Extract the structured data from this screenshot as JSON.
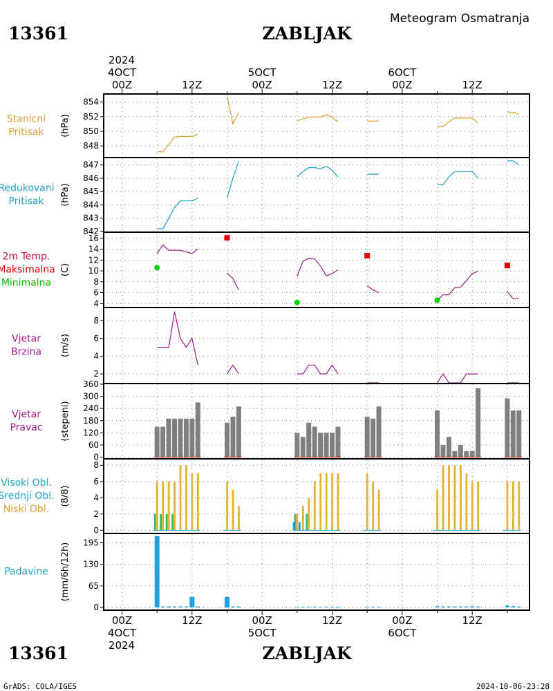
{
  "header": {
    "station_id": "13361",
    "station_name": "ZABLJAK",
    "meteogram_title": "Meteogram Osmatranja"
  },
  "footer": {
    "credit": "GrADS: COLA/IGES",
    "timestamp": "2024-10-06-23:28"
  },
  "time_axis": {
    "year": "2024",
    "ticks": [
      {
        "h": 0,
        "top_label": "00Z",
        "top_date": "4OCT",
        "bottom_label": "00Z",
        "bottom_date": "4OCT"
      },
      {
        "h": 12,
        "top_label": "12Z",
        "top_date": "",
        "bottom_label": "12Z",
        "bottom_date": ""
      },
      {
        "h": 24,
        "top_label": "00Z",
        "top_date": "5OCT",
        "bottom_label": "00Z",
        "bottom_date": "5OCT"
      },
      {
        "h": 36,
        "top_label": "12Z",
        "top_date": "",
        "bottom_label": "12Z",
        "bottom_date": ""
      },
      {
        "h": 48,
        "top_label": "00Z",
        "top_date": "6OCT",
        "bottom_label": "00Z",
        "bottom_date": "6OCT"
      },
      {
        "h": 60,
        "top_label": "12Z",
        "top_date": "",
        "bottom_label": "12Z",
        "bottom_date": ""
      }
    ]
  },
  "chart_data": [
    {
      "id": "pressure",
      "type": "line",
      "labels": [
        "Stanicni",
        "Pritisak"
      ],
      "label_color": "#e0a030",
      "ylabel": "(hPa)",
      "ylim": [
        846.5,
        855
      ],
      "yticks": [
        848,
        850,
        852,
        854
      ],
      "color": "#e0a030",
      "series": [
        {
          "x": [
            6,
            7,
            8,
            9,
            10,
            11,
            12,
            13
          ],
          "y": [
            847.2,
            847.2,
            848.2,
            849.2,
            849.3,
            849.3,
            849.3,
            849.6
          ]
        },
        {
          "x": [
            18,
            19,
            20
          ],
          "y": [
            854.8,
            851,
            852.6
          ]
        },
        {
          "x": [
            30,
            31,
            32,
            33,
            34,
            35,
            36,
            37
          ],
          "y": [
            851.4,
            851.7,
            851.9,
            852,
            851.9,
            852.3,
            851.9,
            851.3
          ]
        },
        {
          "x": [
            42,
            43,
            44
          ],
          "y": [
            851.4,
            851.4,
            851.4
          ]
        },
        {
          "x": [
            54,
            55,
            56,
            57,
            58,
            59,
            60,
            61
          ],
          "y": [
            850.6,
            850.6,
            851.3,
            851.8,
            851.8,
            851.8,
            851.8,
            851.1
          ]
        },
        {
          "x": [
            66,
            67,
            68
          ],
          "y": [
            852.6,
            852.6,
            852.3
          ]
        }
      ]
    },
    {
      "id": "msl",
      "type": "line",
      "labels": [
        "Redukovani",
        "Pritisak"
      ],
      "label_color": "#20a0c8",
      "ylabel": "(hPa)",
      "ylim": [
        842,
        847.5
      ],
      "yticks": [
        842,
        843,
        844,
        845,
        846,
        847
      ],
      "color": "#20a0c8",
      "series": [
        {
          "x": [
            6,
            7,
            8,
            9,
            10,
            11,
            12,
            13
          ],
          "y": [
            842.2,
            842.2,
            843,
            843.8,
            844.3,
            844.3,
            844.3,
            844.5
          ]
        },
        {
          "x": [
            18,
            19,
            20
          ],
          "y": [
            844.5,
            846,
            847.3
          ]
        },
        {
          "x": [
            30,
            31,
            32,
            33,
            34,
            35,
            36,
            37
          ],
          "y": [
            846.1,
            846.5,
            846.8,
            846.8,
            846.7,
            846.9,
            846.6,
            846.1
          ]
        },
        {
          "x": [
            42,
            43,
            44
          ],
          "y": [
            846.3,
            846.3,
            846.3
          ]
        },
        {
          "x": [
            54,
            55,
            56,
            57,
            58,
            59,
            60,
            61
          ],
          "y": [
            845.5,
            845.5,
            846.1,
            846.5,
            846.5,
            846.5,
            846.5,
            846
          ]
        },
        {
          "x": [
            66,
            67,
            68
          ],
          "y": [
            847.3,
            847.3,
            847
          ]
        }
      ]
    },
    {
      "id": "temperature",
      "type": "line",
      "labels": [
        "2m Temp.",
        "Maksimalna",
        "Minimalna"
      ],
      "label_colors": [
        "#d01050",
        "#e00000",
        "#00c000"
      ],
      "ylabel": "(C)",
      "ylim": [
        3.4,
        17
      ],
      "yticks": [
        4,
        6,
        8,
        10,
        12,
        14,
        16
      ],
      "color": "#a01880",
      "series": [
        {
          "x": [
            6,
            7,
            8,
            9,
            10,
            11,
            12,
            13
          ],
          "y": [
            13.2,
            14.8,
            13.8,
            13.8,
            13.8,
            13.5,
            13.2,
            14.1
          ]
        },
        {
          "x": [
            18,
            19,
            20
          ],
          "y": [
            9.6,
            8.6,
            6.5
          ]
        },
        {
          "x": [
            30,
            31,
            32,
            33,
            34,
            35,
            36,
            37
          ],
          "y": [
            9,
            11.8,
            12.3,
            12.2,
            10.9,
            9.1,
            9.5,
            10.2
          ]
        },
        {
          "x": [
            42,
            43,
            44
          ],
          "y": [
            7.3,
            6.5,
            6
          ]
        },
        {
          "x": [
            54,
            55,
            56,
            57,
            58,
            59,
            60,
            61
          ],
          "y": [
            4.6,
            5.6,
            5.6,
            6.9,
            7,
            8.2,
            9.5,
            10
          ]
        },
        {
          "x": [
            66,
            67,
            68
          ],
          "y": [
            6.2,
            4.9,
            4.9
          ]
        }
      ],
      "max": [
        {
          "x": 18,
          "y": 16.1
        },
        {
          "x": 42,
          "y": 12.8
        },
        {
          "x": 66,
          "y": 11
        }
      ],
      "min": [
        {
          "x": 6,
          "y": 10.6
        },
        {
          "x": 30,
          "y": 4.2
        },
        {
          "x": 54,
          "y": 4.6
        }
      ],
      "max_color": "#e00000",
      "min_color": "#00d000"
    },
    {
      "id": "wind_speed",
      "type": "line",
      "labels": [
        "Vjetar",
        "Brzina"
      ],
      "label_color": "#a01890",
      "ylabel": "(m/s)",
      "ylim": [
        1,
        9.4
      ],
      "yticks": [
        2,
        4,
        6,
        8
      ],
      "color": "#a01890",
      "series": [
        {
          "x": [
            6,
            7,
            8,
            9,
            10,
            11,
            12,
            13
          ],
          "y": [
            5,
            5,
            5,
            9,
            6,
            5,
            6,
            3
          ]
        },
        {
          "x": [
            18,
            19,
            20
          ],
          "y": [
            2,
            3,
            2
          ]
        },
        {
          "x": [
            30,
            31,
            32,
            33,
            34,
            35,
            36,
            37
          ],
          "y": [
            2,
            2,
            3,
            3,
            2,
            2,
            3,
            2
          ]
        },
        {
          "x": [
            42,
            43,
            44
          ],
          "y": [
            1,
            1,
            1
          ]
        },
        {
          "x": [
            54,
            55,
            56,
            57,
            58,
            59,
            60,
            61
          ],
          "y": [
            1,
            2,
            1,
            1,
            1,
            2,
            2,
            2
          ]
        },
        {
          "x": [
            66,
            67,
            68
          ],
          "y": [
            1,
            1,
            1
          ]
        }
      ]
    },
    {
      "id": "wind_dir",
      "type": "bar",
      "labels": [
        "Vjetar",
        "Pravac"
      ],
      "label_color": "#a01890",
      "ylabel": "(stepeni)",
      "ylim": [
        -5,
        360
      ],
      "yticks": [
        0,
        60,
        120,
        180,
        240,
        300,
        360
      ],
      "color": "#808080",
      "x": [
        6,
        7,
        8,
        9,
        10,
        11,
        12,
        13,
        18,
        19,
        20,
        30,
        31,
        32,
        33,
        34,
        35,
        36,
        37,
        42,
        43,
        44,
        54,
        55,
        56,
        57,
        58,
        59,
        60,
        61,
        66,
        67,
        68
      ],
      "values": [
        150,
        150,
        190,
        190,
        190,
        190,
        190,
        270,
        170,
        200,
        250,
        120,
        100,
        170,
        150,
        120,
        120,
        120,
        150,
        200,
        190,
        250,
        230,
        60,
        100,
        30,
        60,
        30,
        30,
        340,
        290,
        230,
        230
      ]
    },
    {
      "id": "cloud",
      "type": "bar",
      "labels": [
        "Visoki Obl.",
        "Srednji Obl.",
        "Niski Obl."
      ],
      "label_colors": [
        "#20a8c8",
        "#20a8c8",
        "#e0a030"
      ],
      "ylabel": "(8/8)",
      "ylim": [
        -0.3,
        8.7
      ],
      "yticks": [
        0,
        2,
        4,
        6,
        8
      ],
      "x": [
        6,
        7,
        8,
        9,
        10,
        11,
        12,
        13,
        18,
        19,
        20,
        30,
        31,
        32,
        33,
        34,
        35,
        36,
        37,
        42,
        43,
        44,
        54,
        55,
        56,
        57,
        58,
        59,
        60,
        61,
        66,
        67,
        68
      ],
      "series": [
        {
          "color": "#e8b030",
          "values": [
            6,
            6,
            6,
            6,
            8,
            8,
            7,
            7,
            6,
            5,
            3,
            2,
            3,
            4,
            6,
            7,
            7,
            7,
            7,
            7,
            6,
            5,
            5,
            8,
            8,
            8,
            8,
            7,
            6,
            6,
            6,
            6,
            6
          ]
        },
        {
          "color": "#30c060",
          "values": [
            2,
            2,
            2,
            2,
            0,
            0,
            0,
            0,
            0,
            0,
            0,
            2,
            0,
            2,
            0,
            0,
            0,
            0,
            0,
            0,
            0,
            0,
            0,
            0,
            0,
            0,
            0,
            0,
            0,
            0,
            0,
            0,
            0
          ]
        },
        {
          "color": "#20a0d8",
          "values": [
            0,
            0,
            0,
            0,
            0,
            0,
            0,
            0,
            0,
            0,
            0,
            1,
            1,
            0,
            0,
            0,
            0,
            0,
            0,
            0,
            0,
            0,
            0,
            0,
            0,
            0,
            0,
            0,
            0,
            0,
            0,
            0,
            0
          ]
        }
      ]
    },
    {
      "id": "precip",
      "type": "bar",
      "labels": [
        "Padavine"
      ],
      "label_color": "#20a0c8",
      "ylabel": "(mm/6h/12h)",
      "ylim": [
        -6,
        221
      ],
      "yticks": [
        0,
        65,
        130,
        195
      ],
      "color": "#20a0e0",
      "wide": [
        {
          "x": 6,
          "value": 215
        },
        {
          "x": 12,
          "value": 32
        },
        {
          "x": 18,
          "value": 32
        }
      ],
      "x": [
        6,
        7,
        8,
        9,
        10,
        11,
        12,
        13,
        18,
        19,
        20,
        30,
        31,
        32,
        33,
        34,
        35,
        36,
        37,
        42,
        43,
        44,
        54,
        55,
        56,
        57,
        58,
        59,
        60,
        61,
        66,
        67,
        68
      ],
      "values": [
        3,
        3,
        3,
        3,
        3,
        3,
        3,
        3,
        3,
        3,
        3,
        2,
        2,
        2,
        2,
        2,
        2,
        2,
        2,
        2,
        2,
        2,
        4,
        3,
        3,
        3,
        3,
        3,
        4,
        3,
        6,
        4,
        3
      ]
    }
  ]
}
